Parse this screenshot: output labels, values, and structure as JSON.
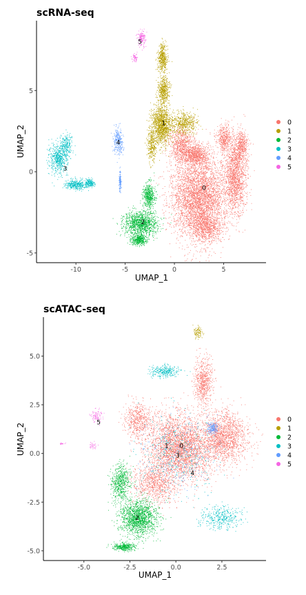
{
  "chart_data": [
    {
      "type": "scatter",
      "title": "scRNA-seq",
      "xlabel": "UMAP_1",
      "ylabel": "UMAP_2",
      "xlim": [
        -14,
        9.3
      ],
      "ylim": [
        -5.6,
        9.3
      ],
      "x_ticks": [
        -10,
        -5,
        0,
        5
      ],
      "x_tick_labels": [
        "-10",
        "-5",
        "0",
        "5"
      ],
      "y_ticks": [
        -5,
        0,
        5
      ],
      "y_tick_labels": [
        "-5",
        "0",
        "5"
      ],
      "grid": false,
      "legend_position": "right",
      "legend": [
        "0",
        "1",
        "2",
        "3",
        "4",
        "5"
      ],
      "series": [
        {
          "name": "0",
          "color": "#F8766D",
          "label_pos": [
            3,
            -1
          ],
          "blobs": [
            [
              2.5,
              -1.6,
              2.8,
              2.6,
              0.48
            ],
            [
              6.2,
              -0.3,
              1.1,
              2.2,
              0.17
            ],
            [
              0.8,
              1.6,
              1.4,
              1.1,
              0.1
            ],
            [
              3.3,
              -3.5,
              1.5,
              0.8,
              0.07
            ],
            [
              5.1,
              2.0,
              0.8,
              0.9,
              0.05
            ],
            [
              6.8,
              1.6,
              0.7,
              1.0,
              0.05
            ],
            [
              2.2,
              1.0,
              1.3,
              0.6,
              0.08
            ]
          ]
        },
        {
          "name": "1",
          "color": "#B79F00",
          "label_pos": [
            -1.1,
            3
          ],
          "blobs": [
            [
              -1.3,
              2.9,
              1.0,
              1.2,
              0.42
            ],
            [
              -1.2,
              7.0,
              0.45,
              0.9,
              0.16
            ],
            [
              1.0,
              3.0,
              1.3,
              0.7,
              0.17
            ],
            [
              -2.3,
              1.7,
              0.45,
              1.1,
              0.1
            ],
            [
              -1.1,
              5.0,
              0.6,
              0.8,
              0.15
            ]
          ]
        },
        {
          "name": "2",
          "color": "#00BA38",
          "label_pos": [
            -3.2,
            -3.1
          ],
          "blobs": [
            [
              -3.4,
              -3.2,
              1.7,
              0.75,
              0.55
            ],
            [
              -2.6,
              -1.5,
              0.6,
              0.8,
              0.25
            ],
            [
              -3.6,
              -4.2,
              0.8,
              0.35,
              0.2
            ]
          ]
        },
        {
          "name": "3",
          "color": "#00BFC4",
          "label_pos": [
            -11.1,
            0.2
          ],
          "blobs": [
            [
              -11.8,
              0.8,
              0.9,
              0.9,
              0.4
            ],
            [
              -11.0,
              1.6,
              0.6,
              0.7,
              0.2
            ],
            [
              -10.0,
              -0.8,
              1.0,
              0.3,
              0.25
            ],
            [
              -8.6,
              -0.7,
              0.5,
              0.25,
              0.15
            ]
          ]
        },
        {
          "name": "4",
          "color": "#619CFF",
          "label_pos": [
            -5.7,
            1.8
          ],
          "blobs": [
            [
              -5.7,
              1.9,
              0.5,
              0.85,
              0.7
            ],
            [
              -5.5,
              -0.6,
              0.12,
              0.6,
              0.3
            ]
          ]
        },
        {
          "name": "5",
          "color": "#F564E3",
          "label_pos": [
            -3.5,
            8
          ],
          "blobs": [
            [
              -3.3,
              8.2,
              0.35,
              0.5,
              0.7
            ],
            [
              -4.0,
              7.0,
              0.3,
              0.25,
              0.3
            ]
          ]
        }
      ],
      "counts": [
        8600,
        3000,
        2000,
        1300,
        400,
        200
      ]
    },
    {
      "type": "scatter",
      "title": "scATAC-seq",
      "xlabel": "UMAP_1",
      "ylabel": "UMAP_2",
      "xlim": [
        -7.2,
        4.9
      ],
      "ylim": [
        -5.5,
        7.0
      ],
      "x_ticks": [
        -5,
        -2.5,
        0,
        2.5
      ],
      "x_tick_labels": [
        "-5.0",
        "-2.5",
        "0.0",
        "2.5"
      ],
      "y_ticks": [
        -5,
        -2.5,
        0,
        2.5,
        5
      ],
      "y_tick_labels": [
        "-5.0",
        "-2.5",
        "0.0",
        "2.5",
        "5.0"
      ],
      "grid": false,
      "legend_position": "right",
      "legend": [
        "0",
        "1",
        "2",
        "3",
        "4",
        "5"
      ],
      "series": [
        {
          "name": "0",
          "color": "#F8766D",
          "label_pos": [
            0.3,
            0.4
          ],
          "blobs": [
            [
              0.2,
              0.3,
              1.7,
              1.7,
              0.45
            ],
            [
              2.6,
              0.8,
              1.3,
              1.3,
              0.25
            ],
            [
              1.5,
              3.7,
              0.5,
              1.2,
              0.1
            ],
            [
              -1.2,
              -1.6,
              1.2,
              1.0,
              0.12
            ],
            [
              -2.0,
              1.7,
              0.8,
              1.0,
              0.08
            ]
          ]
        },
        {
          "name": "1",
          "color": "#B79F00",
          "label_pos": [
            -0.5,
            0.4
          ],
          "blobs": [
            [
              1.2,
              6.2,
              0.22,
              0.3,
              0.8
            ],
            [
              0.2,
              0.0,
              1.6,
              1.5,
              0.2
            ]
          ]
        },
        {
          "name": "2",
          "color": "#00BA38",
          "label_pos": [
            -2.1,
            -3.3
          ],
          "blobs": [
            [
              -2.0,
              -3.3,
              1.0,
              0.9,
              0.6
            ],
            [
              -3.0,
              -1.5,
              0.5,
              1.0,
              0.25
            ],
            [
              -2.8,
              -4.8,
              0.6,
              0.2,
              0.15
            ]
          ]
        },
        {
          "name": "3",
          "color": "#00BFC4",
          "label_pos": [
            0.1,
            -0.1
          ],
          "blobs": [
            [
              -0.6,
              4.2,
              0.8,
              0.3,
              0.3
            ],
            [
              2.5,
              -3.3,
              1.1,
              0.6,
              0.4
            ],
            [
              0.0,
              0.0,
              2.0,
              2.0,
              0.3
            ]
          ]
        },
        {
          "name": "4",
          "color": "#619CFF",
          "label_pos": [
            0.9,
            -1
          ],
          "blobs": [
            [
              0.0,
              0.0,
              2.2,
              2.2,
              0.6
            ],
            [
              2.0,
              1.3,
              0.3,
              0.3,
              0.4
            ]
          ]
        },
        {
          "name": "5",
          "color": "#F564E3",
          "label_pos": [
            -4.2,
            1.6
          ],
          "blobs": [
            [
              -4.3,
              1.9,
              0.35,
              0.35,
              0.6
            ],
            [
              -4.5,
              0.4,
              0.2,
              0.2,
              0.2
            ],
            [
              -6.2,
              0.5,
              0.15,
              0.05,
              0.2
            ]
          ]
        }
      ],
      "counts": [
        6800,
        120,
        2400,
        1000,
        450,
        140
      ]
    }
  ]
}
